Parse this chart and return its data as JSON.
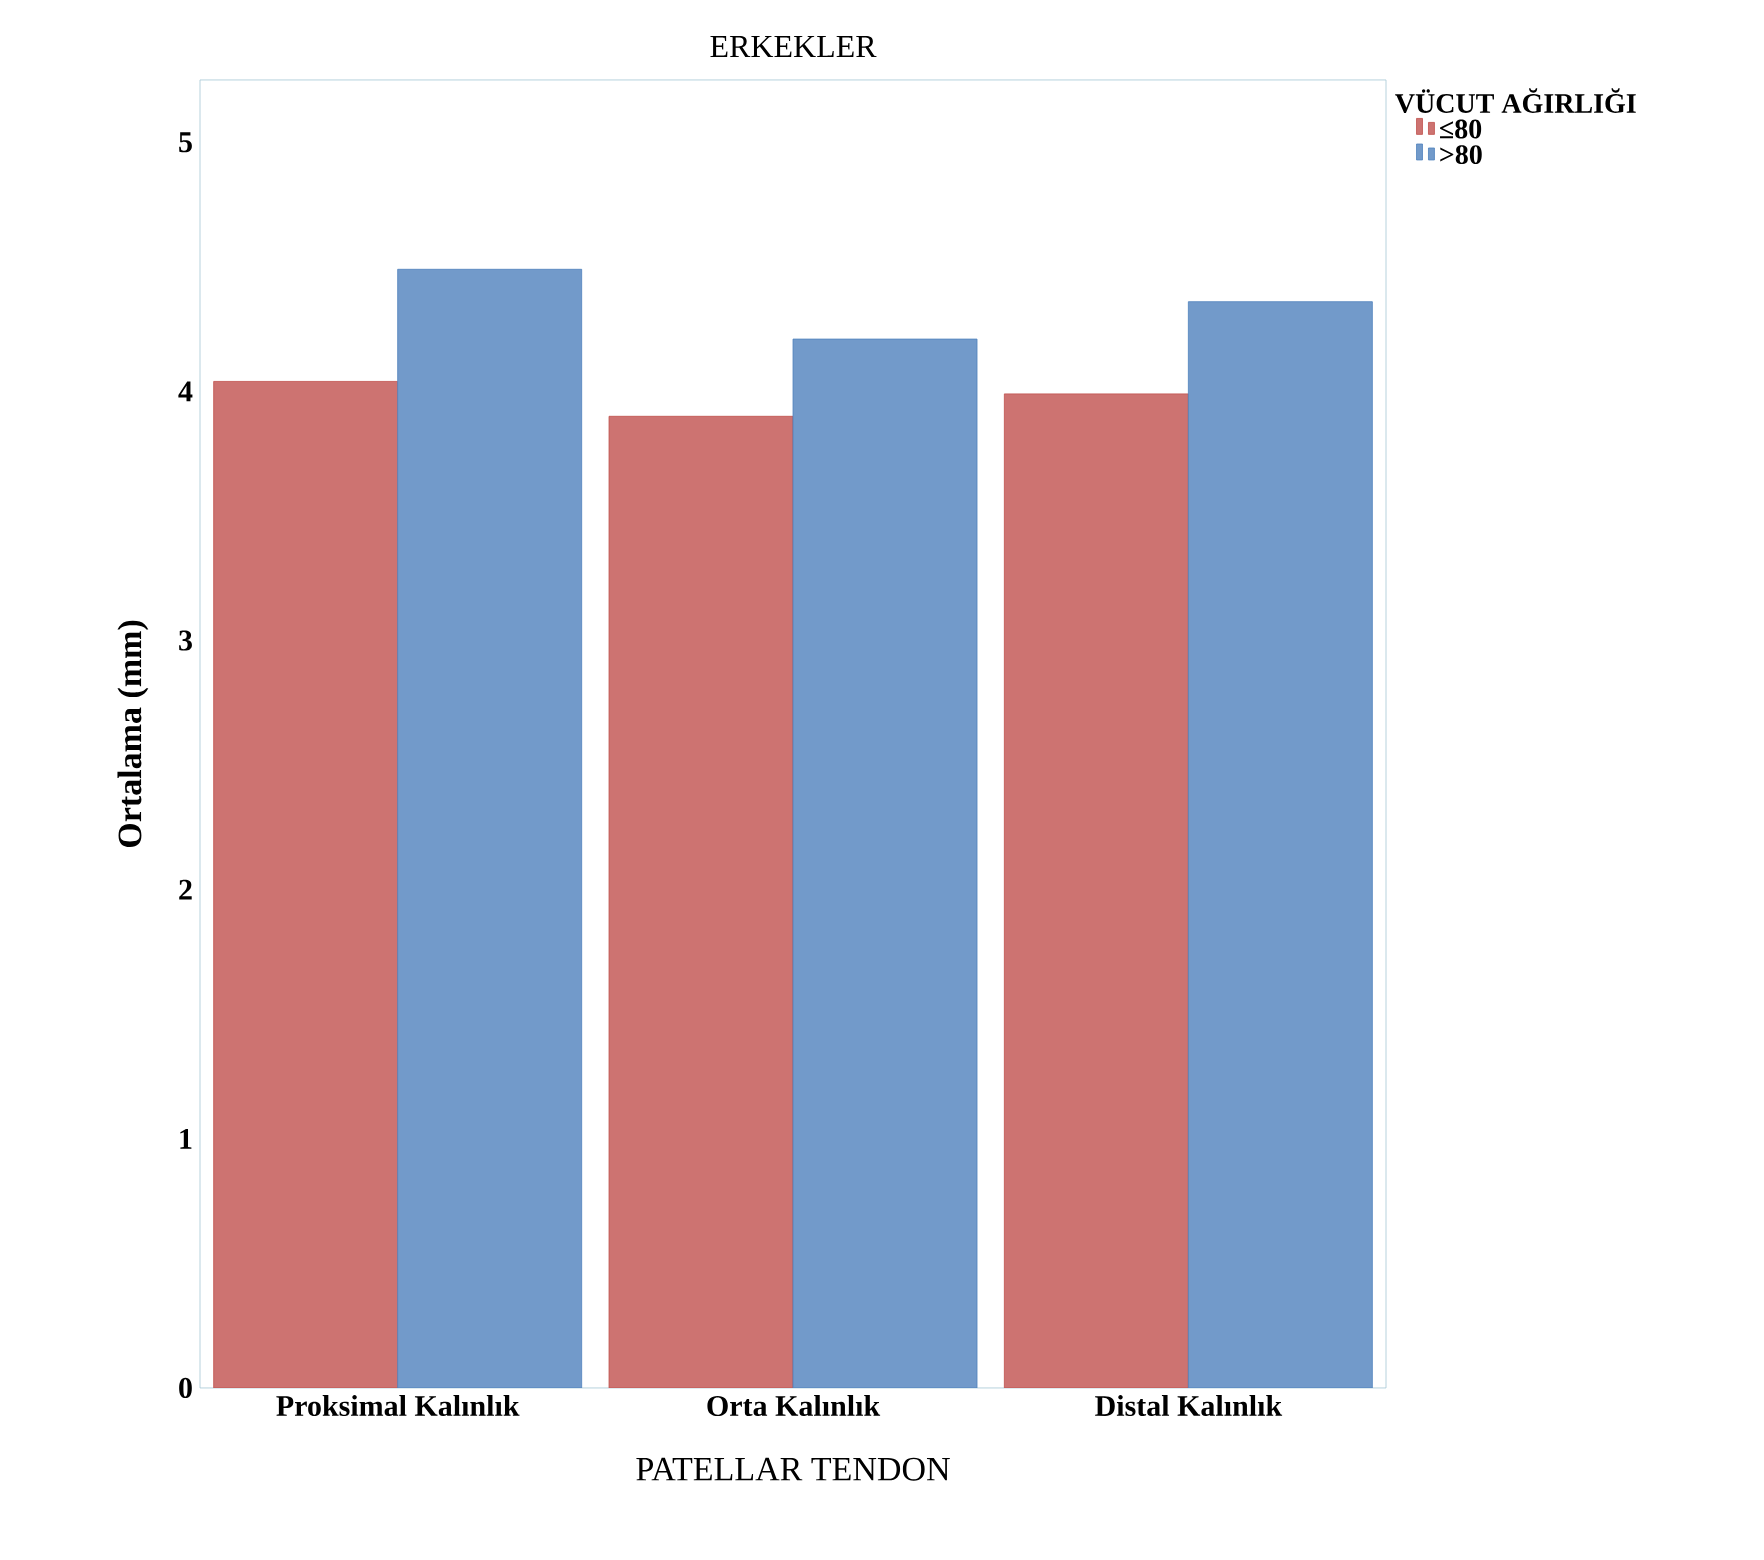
{
  "chart_data": {
    "type": "bar",
    "title": "ERKEKLER",
    "xlabel": "PATELLAR TENDON",
    "ylabel": "Ortalama (mm)",
    "legend_title": "VÜCUT AĞIRLIĞI",
    "categories": [
      "Proksimal Kalınlık",
      "Orta Kalınlık",
      "Distal Kalınlık"
    ],
    "series": [
      {
        "name": "≤80",
        "color": "#c0504d",
        "values": [
          4.04,
          3.9,
          3.99
        ]
      },
      {
        "name": ">80",
        "color": "#4f81bd",
        "values": [
          4.49,
          4.21,
          4.36
        ]
      }
    ],
    "ylim": [
      0,
      5.25
    ],
    "yticks": [
      0,
      1,
      2,
      3,
      4,
      5
    ],
    "legend": "top right"
  }
}
